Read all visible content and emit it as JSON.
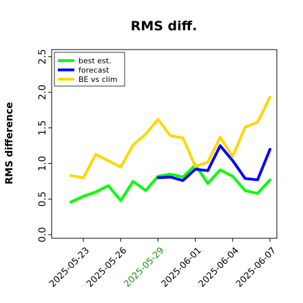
{
  "chart_data": {
    "type": "line",
    "title": "RMS diff.",
    "ylabel": "RMS difference",
    "xlabel": "",
    "ylim": [
      -0.05,
      2.6
    ],
    "yticks": [
      "0.0",
      "0.5",
      "1.0",
      "1.5",
      "2.0",
      "2.5"
    ],
    "xticks": [
      {
        "label": "2025-05-23",
        "color": "#000000"
      },
      {
        "label": "2025-05-26",
        "color": "#000000"
      },
      {
        "label": "2025-05-29",
        "color": "#228b22"
      },
      {
        "label": "2025-06-01",
        "color": "#000000"
      },
      {
        "label": "2025-06-04",
        "color": "#000000"
      },
      {
        "label": "2025-06-07",
        "color": "#000000"
      }
    ],
    "x": [
      "2025-05-22",
      "2025-05-23",
      "2025-05-24",
      "2025-05-25",
      "2025-05-26",
      "2025-05-27",
      "2025-05-28",
      "2025-05-29",
      "2025-05-30",
      "2025-05-31",
      "2025-06-01",
      "2025-06-02",
      "2025-06-03",
      "2025-06-04",
      "2025-06-05",
      "2025-06-06",
      "2025-06-07"
    ],
    "legend_position": "top-left",
    "grid": false,
    "series": [
      {
        "name": "best est.",
        "color": "#00ff00",
        "values": [
          0.46,
          0.54,
          0.6,
          0.69,
          0.48,
          0.75,
          0.62,
          0.82,
          0.85,
          0.81,
          0.98,
          0.72,
          0.91,
          0.82,
          0.62,
          0.58,
          0.77
        ]
      },
      {
        "name": "forecast",
        "color": "#0000ff",
        "values": [
          null,
          null,
          null,
          null,
          null,
          null,
          null,
          0.8,
          0.81,
          0.76,
          0.92,
          0.9,
          1.25,
          1.04,
          0.79,
          0.77,
          1.2
        ]
      },
      {
        "name": "BE vs clim",
        "color": "#ffd700",
        "values": [
          0.83,
          0.8,
          1.13,
          1.04,
          0.95,
          1.26,
          1.41,
          1.62,
          1.39,
          1.36,
          0.96,
          1.02,
          1.37,
          1.1,
          1.51,
          1.58,
          1.93
        ]
      }
    ]
  }
}
